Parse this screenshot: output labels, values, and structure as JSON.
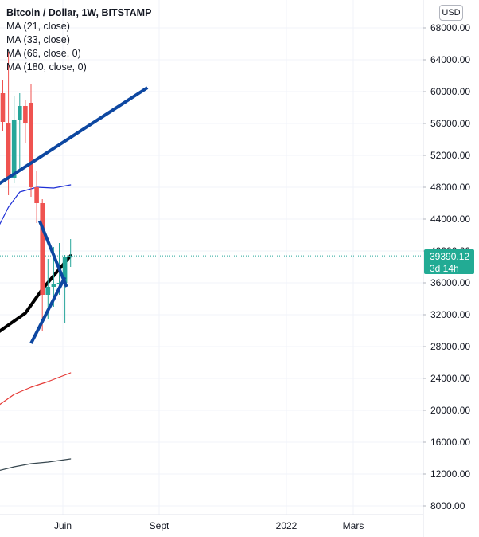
{
  "header": {
    "title": "Bitcoin / Dollar, 1W, BITSTAMP",
    "indicators": [
      "MA (21, close)",
      "MA (33, close)",
      "MA (66, close, 0)",
      "MA (180, close, 0)"
    ],
    "currency": "USD"
  },
  "price_label": {
    "price": "39390.12",
    "countdown": "3d 14h"
  },
  "colors": {
    "up": "#26a69a",
    "down": "#ef5350",
    "trendline": "#0d47a1",
    "ma21": "#000000",
    "ma33": "#1e2fd6",
    "ma66": "#e53935",
    "ma180": "#37474f",
    "price_tag": "#22ab94",
    "grid": "#f0f3fa",
    "axis_text": "#131722"
  },
  "chart_data": {
    "type": "candlestick",
    "y_axis": {
      "min": 5000,
      "max": 70500,
      "ticks": [
        "68000.00",
        "64000.00",
        "60000.00",
        "56000.00",
        "52000.00",
        "48000.00",
        "44000.00",
        "40000.00",
        "36000.00",
        "32000.00",
        "28000.00",
        "24000.00",
        "20000.00",
        "16000.00",
        "12000.00",
        "8000.00"
      ]
    },
    "x_axis": {
      "ticks": [
        "Juin",
        "Sept",
        "2022",
        "Mars"
      ]
    },
    "candles": [
      {
        "x": 0,
        "o": 59800,
        "h": 61500,
        "l": 55000,
        "c": 56200
      },
      {
        "x": 1,
        "o": 56000,
        "h": 65000,
        "l": 47000,
        "c": 49200
      },
      {
        "x": 2,
        "o": 49200,
        "h": 59500,
        "l": 48500,
        "c": 56500
      },
      {
        "x": 3,
        "o": 56500,
        "h": 59800,
        "l": 50000,
        "c": 58200
      },
      {
        "x": 4,
        "o": 58200,
        "h": 59000,
        "l": 53500,
        "c": 56000
      },
      {
        "x": 5,
        "o": 58600,
        "h": 61000,
        "l": 46800,
        "c": 48000
      },
      {
        "x": 6,
        "o": 48000,
        "h": 50000,
        "l": 43500,
        "c": 46000
      },
      {
        "x": 7,
        "o": 46000,
        "h": 46500,
        "l": 30000,
        "c": 34500
      },
      {
        "x": 8,
        "o": 34500,
        "h": 39000,
        "l": 31500,
        "c": 35500
      },
      {
        "x": 9,
        "o": 35500,
        "h": 40500,
        "l": 33000,
        "c": 35800
      },
      {
        "x": 10,
        "o": 35800,
        "h": 41000,
        "l": 34500,
        "c": 36000
      },
      {
        "x": 11,
        "o": 36000,
        "h": 39500,
        "l": 31000,
        "c": 39200
      },
      {
        "x": 12,
        "o": 39200,
        "h": 41500,
        "l": 38000,
        "c": 39390
      }
    ],
    "moving_averages": [
      {
        "name": "MA (21, close)",
        "points": [
          [
            -2,
            29200
          ],
          [
            4,
            32200
          ],
          [
            7,
            35200
          ],
          [
            12,
            39400
          ]
        ]
      },
      {
        "name": "MA (33, close)",
        "points": [
          [
            -2,
            41300
          ],
          [
            1,
            45500
          ],
          [
            3,
            47400
          ],
          [
            6,
            48000
          ],
          [
            9,
            47900
          ],
          [
            12,
            48300
          ]
        ]
      },
      {
        "name": "MA (66, close, 0)",
        "points": [
          [
            -2,
            20000
          ],
          [
            2,
            22000
          ],
          [
            5,
            22900
          ],
          [
            8,
            23600
          ],
          [
            12,
            24700
          ]
        ]
      },
      {
        "name": "MA (180, close, 0)",
        "points": [
          [
            -2,
            12200
          ],
          [
            2,
            12900
          ],
          [
            5,
            13300
          ],
          [
            8,
            13500
          ],
          [
            12,
            13900
          ]
        ]
      }
    ],
    "trendlines": [
      {
        "x1": -1.4,
        "y1": 48100,
        "x2": 25.6,
        "y2": 60500
      },
      {
        "x1": 6.5,
        "y1": 43800,
        "x2": 11.3,
        "y2": 35500
      },
      {
        "x1": 5.0,
        "y1": 28400,
        "x2": 11.0,
        "y2": 36700
      }
    ],
    "last_price": 39390.12
  }
}
